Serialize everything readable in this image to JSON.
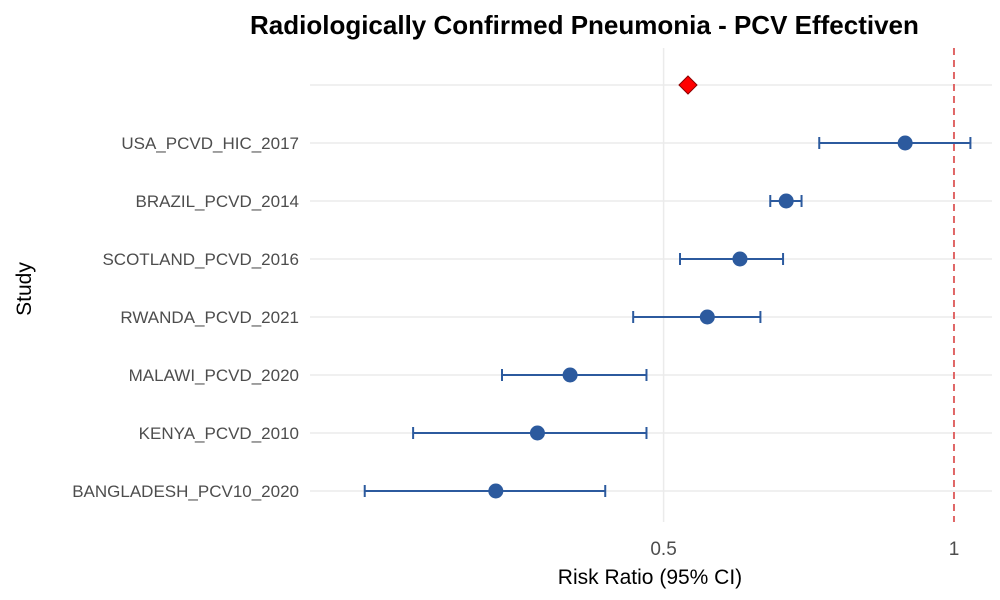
{
  "chart_data": {
    "type": "forest",
    "title": "Radiologically Confirmed Pneumonia - PCV Effectiven",
    "xlabel": "Risk Ratio (95% CI)",
    "ylabel": "Study",
    "x_scale": "log",
    "xlim": [
      0.215,
      1.095
    ],
    "x_ticks": [
      0.5,
      1
    ],
    "x_tick_labels": [
      "0.5",
      "1"
    ],
    "reference_line": 1,
    "pooled_estimate": {
      "label": "",
      "rr": 0.53
    },
    "studies": [
      {
        "label": "USA_PCVD_HIC_2017",
        "rr": 0.89,
        "lower": 0.725,
        "upper": 1.04
      },
      {
        "label": "BRAZIL_PCVD_2014",
        "rr": 0.67,
        "lower": 0.645,
        "upper": 0.695
      },
      {
        "label": "SCOTLAND_PCVD_2016",
        "rr": 0.6,
        "lower": 0.52,
        "upper": 0.665
      },
      {
        "label": "RWANDA_PCVD_2021",
        "rr": 0.555,
        "lower": 0.465,
        "upper": 0.63
      },
      {
        "label": "MALAWI_PCVD_2020",
        "rr": 0.4,
        "lower": 0.34,
        "upper": 0.48
      },
      {
        "label": "KENYA_PCVD_2010",
        "rr": 0.37,
        "lower": 0.275,
        "upper": 0.48
      },
      {
        "label": "BANGLADESH_PCV10_2020",
        "rr": 0.335,
        "lower": 0.245,
        "upper": 0.435
      }
    ],
    "colors": {
      "point": "#2c5a9e",
      "pooled": "#ff0000",
      "reference": "#e06666",
      "grid": "#ebebeb"
    }
  }
}
